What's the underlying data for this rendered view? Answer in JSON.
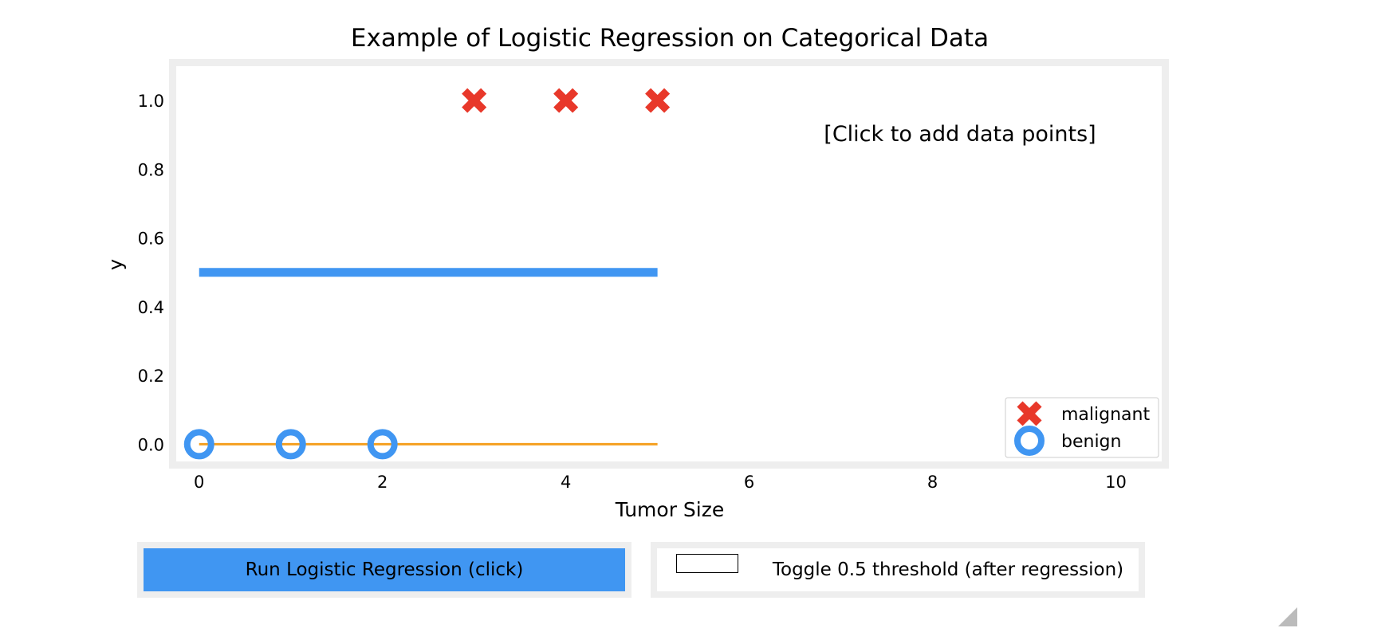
{
  "chart_data": {
    "type": "scatter",
    "title": "Example of Logistic Regression on Categorical Data",
    "xlabel": "Tumor Size",
    "ylabel": "y",
    "xlim": [
      -0.25,
      10.5
    ],
    "ylim": [
      -0.05,
      1.1
    ],
    "xticks": [
      0,
      2,
      4,
      6,
      8,
      10
    ],
    "xtick_labels": [
      "0",
      "2",
      "4",
      "6",
      "8",
      "10"
    ],
    "yticks": [
      0.0,
      0.2,
      0.4,
      0.6,
      0.8,
      1.0
    ],
    "ytick_labels": [
      "0.0",
      "0.2",
      "0.4",
      "0.6",
      "0.8",
      "1.0"
    ],
    "grid": false,
    "legend_position": "lower right",
    "annotation": "[Click to add data points]",
    "series": [
      {
        "name": "malignant",
        "marker": "x",
        "color": "#e8382a",
        "x": [
          3,
          4,
          5
        ],
        "y": [
          1,
          1,
          1
        ]
      },
      {
        "name": "benign",
        "marker": "o",
        "color": "#4096f2",
        "x": [
          0,
          1,
          2
        ],
        "y": [
          0,
          0,
          0
        ]
      }
    ],
    "lines": [
      {
        "color": "#4096f2",
        "x": [
          0,
          5
        ],
        "y": [
          0.5,
          0.5
        ]
      },
      {
        "color": "#f5a020",
        "x": [
          0,
          5
        ],
        "y": [
          0,
          0
        ]
      }
    ]
  },
  "controls": {
    "run_label": "Run Logistic Regression (click)",
    "toggle_label": "Toggle 0.5 threshold (after regression)",
    "toggle_checked": false
  }
}
